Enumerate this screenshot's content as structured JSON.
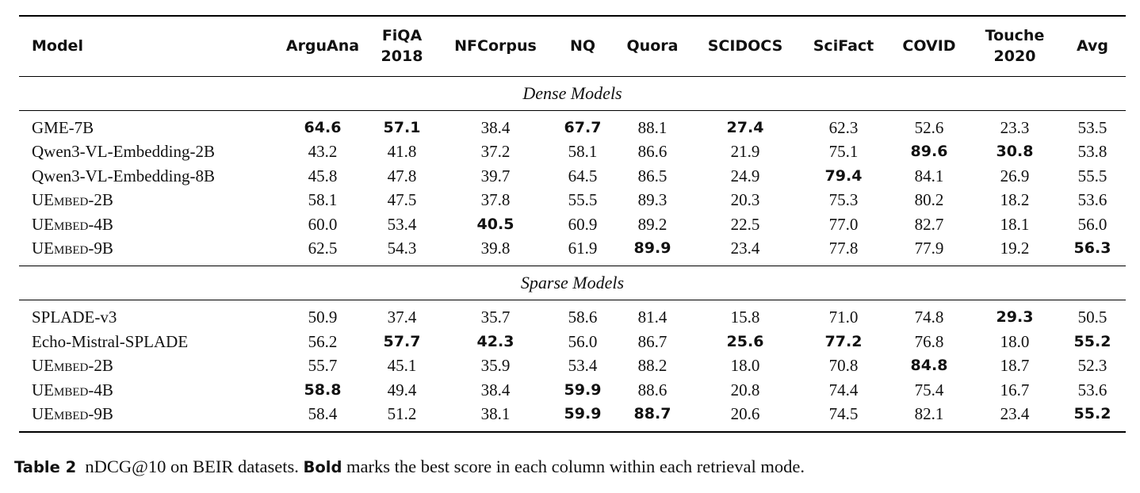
{
  "table": {
    "columns": [
      {
        "line1": "Model",
        "line2": ""
      },
      {
        "line1": "ArguAna",
        "line2": ""
      },
      {
        "line1": "FiQA",
        "line2": "2018"
      },
      {
        "line1": "NFCorpus",
        "line2": ""
      },
      {
        "line1": "NQ",
        "line2": ""
      },
      {
        "line1": "Quora",
        "line2": ""
      },
      {
        "line1": "SCIDOCS",
        "line2": ""
      },
      {
        "line1": "SciFact",
        "line2": ""
      },
      {
        "line1": "COVID",
        "line2": ""
      },
      {
        "line1": "Touche",
        "line2": "2020"
      },
      {
        "line1": "Avg",
        "line2": ""
      }
    ],
    "sections": [
      {
        "title": "Dense Models",
        "rows": [
          {
            "model": "GME-7B",
            "sc": false,
            "values": [
              "64.6",
              "57.1",
              "38.4",
              "67.7",
              "88.1",
              "27.4",
              "62.3",
              "52.6",
              "23.3",
              "53.5"
            ],
            "bold": [
              true,
              true,
              false,
              true,
              false,
              true,
              false,
              false,
              false,
              false
            ]
          },
          {
            "model": "Qwen3-VL-Embedding-2B",
            "sc": false,
            "values": [
              "43.2",
              "41.8",
              "37.2",
              "58.1",
              "86.6",
              "21.9",
              "75.1",
              "89.6",
              "30.8",
              "53.8"
            ],
            "bold": [
              false,
              false,
              false,
              false,
              false,
              false,
              false,
              true,
              true,
              false
            ]
          },
          {
            "model": "Qwen3-VL-Embedding-8B",
            "sc": false,
            "values": [
              "45.8",
              "47.8",
              "39.7",
              "64.5",
              "86.5",
              "24.9",
              "79.4",
              "84.1",
              "26.9",
              "55.5"
            ],
            "bold": [
              false,
              false,
              false,
              false,
              false,
              false,
              true,
              false,
              false,
              false
            ]
          },
          {
            "model": "UEmbed-2B",
            "sc": true,
            "values": [
              "58.1",
              "47.5",
              "37.8",
              "55.5",
              "89.3",
              "20.3",
              "75.3",
              "80.2",
              "18.2",
              "53.6"
            ],
            "bold": [
              false,
              false,
              false,
              false,
              false,
              false,
              false,
              false,
              false,
              false
            ]
          },
          {
            "model": "UEmbed-4B",
            "sc": true,
            "values": [
              "60.0",
              "53.4",
              "40.5",
              "60.9",
              "89.2",
              "22.5",
              "77.0",
              "82.7",
              "18.1",
              "56.0"
            ],
            "bold": [
              false,
              false,
              true,
              false,
              false,
              false,
              false,
              false,
              false,
              false
            ]
          },
          {
            "model": "UEmbed-9B",
            "sc": true,
            "values": [
              "62.5",
              "54.3",
              "39.8",
              "61.9",
              "89.9",
              "23.4",
              "77.8",
              "77.9",
              "19.2",
              "56.3"
            ],
            "bold": [
              false,
              false,
              false,
              false,
              true,
              false,
              false,
              false,
              false,
              true
            ]
          }
        ]
      },
      {
        "title": "Sparse Models",
        "rows": [
          {
            "model": "SPLADE-v3",
            "sc": false,
            "values": [
              "50.9",
              "37.4",
              "35.7",
              "58.6",
              "81.4",
              "15.8",
              "71.0",
              "74.8",
              "29.3",
              "50.5"
            ],
            "bold": [
              false,
              false,
              false,
              false,
              false,
              false,
              false,
              false,
              true,
              false
            ]
          },
          {
            "model": "Echo-Mistral-SPLADE",
            "sc": false,
            "values": [
              "56.2",
              "57.7",
              "42.3",
              "56.0",
              "86.7",
              "25.6",
              "77.2",
              "76.8",
              "18.0",
              "55.2"
            ],
            "bold": [
              false,
              true,
              true,
              false,
              false,
              true,
              true,
              false,
              false,
              true
            ]
          },
          {
            "model": "UEmbed-2B",
            "sc": true,
            "values": [
              "55.7",
              "45.1",
              "35.9",
              "53.4",
              "88.2",
              "18.0",
              "70.8",
              "84.8",
              "18.7",
              "52.3"
            ],
            "bold": [
              false,
              false,
              false,
              false,
              false,
              false,
              false,
              true,
              false,
              false
            ]
          },
          {
            "model": "UEmbed-4B",
            "sc": true,
            "values": [
              "58.8",
              "49.4",
              "38.4",
              "59.9",
              "88.6",
              "20.8",
              "74.4",
              "75.4",
              "16.7",
              "53.6"
            ],
            "bold": [
              true,
              false,
              false,
              true,
              false,
              false,
              false,
              false,
              false,
              false
            ]
          },
          {
            "model": "UEmbed-9B",
            "sc": true,
            "values": [
              "58.4",
              "51.2",
              "38.1",
              "59.9",
              "88.7",
              "20.6",
              "74.5",
              "82.1",
              "23.4",
              "55.2"
            ],
            "bold": [
              false,
              false,
              false,
              true,
              true,
              false,
              false,
              false,
              false,
              true
            ]
          }
        ]
      }
    ]
  },
  "caption": {
    "label": "Table 2",
    "text1": "nDCG@10 on BEIR datasets.",
    "bold_word": "Bold",
    "text2": "marks the best score in each column within each retrieval mode."
  }
}
